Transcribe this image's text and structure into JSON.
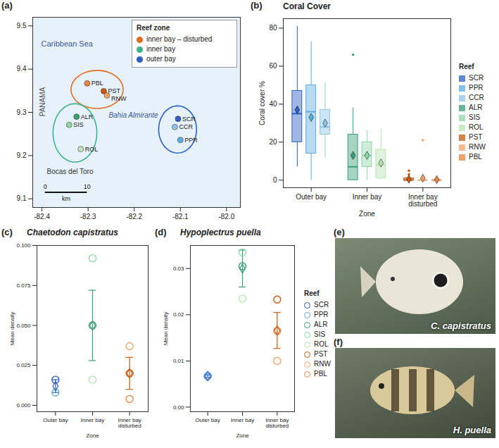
{
  "chart_data": [
    {
      "panel": "(a)",
      "type": "scatter",
      "xlim": [
        -82.42,
        -81.97
      ],
      "xticks": [
        -82.4,
        -82.3,
        -82.2,
        -82.1,
        {
          "value": -82,
          "label": "-82.0"
        }
      ],
      "ylim": [
        9.08,
        9.52
      ],
      "yticks": [
        9.1,
        9.2,
        9.3,
        9.4,
        9.5
      ],
      "legend": "top-right",
      "legend_title": "Reef zone",
      "series": [
        {
          "name": "inner bay – disturbed",
          "color": "#e06c1f",
          "points": [
            {
              "name": "PBL",
              "x": -82.302,
              "y": 9.367,
              "color": "#e8843f"
            },
            {
              "name": "PST",
              "x": -82.266,
              "y": 9.349,
              "color": "#c85a12"
            },
            {
              "name": "RNW",
              "x": -82.259,
              "y": 9.339,
              "color": "#f2a36a"
            }
          ]
        },
        {
          "name": "inner bay",
          "color": "#3fb48a",
          "points": [
            {
              "name": "ALR",
              "x": -82.325,
              "y": 9.29,
              "color": "#3a9e78"
            },
            {
              "name": "SIS",
              "x": -82.341,
              "y": 9.271,
              "color": "#8fd6a6"
            },
            {
              "name": "ROL",
              "x": -82.316,
              "y": 9.215,
              "color": "#b9e3b5"
            }
          ]
        },
        {
          "name": "outer bay",
          "color": "#2d5fc4",
          "points": [
            {
              "name": "SCR",
              "x": -82.105,
              "y": 9.285,
              "color": "#2d5fc4"
            },
            {
              "name": "CCR",
              "x": -82.112,
              "y": 9.266,
              "color": "#8fc4e8"
            },
            {
              "name": "PPR",
              "x": -82.1,
              "y": 9.236,
              "color": "#5aaee0"
            }
          ]
        }
      ],
      "annotations": [
        "Caribbean Sea",
        "Bahia Almirante",
        "PANAMA",
        "Bocas del Toro"
      ],
      "scale_bar": {
        "values": [
          0,
          10
        ],
        "unit": "km"
      }
    },
    {
      "panel": "(b)",
      "type": "box",
      "title": "Coral Cover",
      "x_label": "Zone",
      "y_label": "Coral cover %",
      "categories": [
        "Outer bay",
        "Inner bay",
        "Inner bay disturbed"
      ],
      "ylim": [
        -4,
        85
      ],
      "yticks": [
        0,
        20,
        40,
        60,
        80
      ],
      "legend": "right",
      "legend_title": "Reef",
      "series": [
        {
          "name": "SCR",
          "category": "Outer bay",
          "color": "#2d5fc4",
          "min": 7,
          "q1": 20,
          "median": 35,
          "q3": 47,
          "max": 81,
          "mean": 37,
          "outliers": []
        },
        {
          "name": "PPR",
          "category": "Outer bay",
          "color": "#5aaee0",
          "min": 0,
          "q1": 14,
          "median": 36,
          "q3": 50,
          "max": 73,
          "mean": 33,
          "outliers": []
        },
        {
          "name": "CCR",
          "category": "Outer bay",
          "color": "#8fc4e8",
          "min": 12,
          "q1": 24,
          "median": 28,
          "q3": 37,
          "max": 51,
          "mean": 30,
          "outliers": []
        },
        {
          "name": "ALR",
          "category": "Inner bay",
          "color": "#3a9e78",
          "min": 0,
          "q1": 0,
          "median": 7,
          "q3": 24,
          "max": 38,
          "mean": 13,
          "outliers": [
            66
          ]
        },
        {
          "name": "SIS",
          "category": "Inner bay",
          "color": "#8fd6a6",
          "min": 0,
          "q1": 7,
          "median": 13,
          "q3": 20,
          "max": 26,
          "mean": 13,
          "outliers": []
        },
        {
          "name": "ROL",
          "category": "Inner bay",
          "color": "#b9e3b5",
          "min": 0,
          "q1": 1,
          "median": 8,
          "q3": 16,
          "max": 27,
          "mean": 9,
          "outliers": []
        },
        {
          "name": "PST",
          "category": "Inner bay disturbed",
          "color": "#c85a12",
          "min": 0,
          "q1": 0,
          "median": 0,
          "q3": 1,
          "max": 1,
          "mean": 0.5,
          "outliers": [
            3,
            5
          ]
        },
        {
          "name": "RNW",
          "category": "Inner bay disturbed",
          "color": "#f2a36a",
          "min": 0,
          "q1": 0,
          "median": 0,
          "q3": 0,
          "max": 0,
          "mean": 1,
          "outliers": [
            21
          ]
        },
        {
          "name": "PBL",
          "category": "Inner bay disturbed",
          "color": "#e8843f",
          "min": 0,
          "q1": 0,
          "median": 0,
          "q3": 0,
          "max": 0,
          "mean": 0.3,
          "outliers": []
        }
      ]
    },
    {
      "panel": "(c)",
      "type": "dot",
      "title": "Chaetodon capistratus",
      "x_label": "Zone",
      "y_label": "Mean density",
      "categories": [
        "Outer bay",
        "Inner bay",
        "Inner bay disturbed"
      ],
      "means": [
        0.012,
        0.05,
        0.02
      ],
      "errors": [
        0.004,
        0.022,
        0.01
      ],
      "colors": [
        "#2d5fc4",
        "#3a9e78",
        "#c85a12"
      ],
      "ylim": [
        -0.004,
        0.1
      ],
      "yticks": [
        {
          "value": 0,
          "label": "0.000"
        },
        0.025,
        {
          "value": 0.05,
          "label": "0.050"
        },
        0.075,
        {
          "value": 0.1,
          "label": "0.100"
        }
      ],
      "points": [
        {
          "name": "SCR",
          "category": "Outer bay",
          "color": "#2d5fc4",
          "value": 0.016
        },
        {
          "name": "PPR",
          "category": "Outer bay",
          "color": "#5aaee0",
          "value": 0.008
        },
        {
          "name": "ALR",
          "category": "Inner bay",
          "color": "#3a9e78",
          "value": 0.05
        },
        {
          "name": "SIS",
          "category": "Inner bay",
          "color": "#8fd6a6",
          "value": 0.092
        },
        {
          "name": "ROL",
          "category": "Inner bay",
          "color": "#b9e3b5",
          "value": 0.016
        },
        {
          "name": "PST",
          "category": "Inner bay disturbed",
          "color": "#c85a12",
          "value": 0.02
        },
        {
          "name": "RNW",
          "category": "Inner bay disturbed",
          "color": "#f2a36a",
          "value": 0.037
        },
        {
          "name": "PBL",
          "category": "Inner bay disturbed",
          "color": "#e8843f",
          "value": 0.004
        }
      ]
    },
    {
      "panel": "(d)",
      "type": "dot",
      "title": "Hypoplectrus puella",
      "x_label": "Zone",
      "y_label": "Mean density",
      "categories": [
        "Outer bay",
        "Inner bay",
        "Inner bay disturbed"
      ],
      "means": [
        0.0067,
        0.03,
        0.0166
      ],
      "errors": [
        0.0003,
        0.004,
        0.0039
      ],
      "colors": [
        "#2d5fc4",
        "#3a9e78",
        "#c85a12"
      ],
      "ylim": [
        -0.001,
        0.035
      ],
      "yticks": [
        {
          "value": 0,
          "label": "0.00"
        },
        0.01,
        0.02,
        0.03
      ],
      "legend": "right",
      "legend_title": "Reef",
      "points": [
        {
          "name": "SCR",
          "category": "Outer bay",
          "color": "#2d5fc4",
          "value": 0.0067
        },
        {
          "name": "PPR",
          "category": "Outer bay",
          "color": "#5aaee0",
          "value": 0.0067
        },
        {
          "name": "ALR",
          "category": "Inner bay",
          "color": "#3a9e78",
          "value": 0.0305
        },
        {
          "name": "SIS",
          "category": "Inner bay",
          "color": "#8fd6a6",
          "value": 0.0335
        },
        {
          "name": "ROL",
          "category": "Inner bay",
          "color": "#b9e3b5",
          "value": 0.0235
        },
        {
          "name": "PST",
          "category": "Inner bay disturbed",
          "color": "#c85a12",
          "value": 0.0233
        },
        {
          "name": "RNW",
          "category": "Inner bay disturbed",
          "color": "#f2a36a",
          "value": 0.01
        },
        {
          "name": "PBL",
          "category": "Inner bay disturbed",
          "color": "#e8843f",
          "value": 0.0165
        }
      ]
    }
  ],
  "photos": [
    {
      "panel": "(e)",
      "caption": "C. capistratus"
    },
    {
      "panel": "(f)",
      "caption": "H. puella"
    }
  ]
}
